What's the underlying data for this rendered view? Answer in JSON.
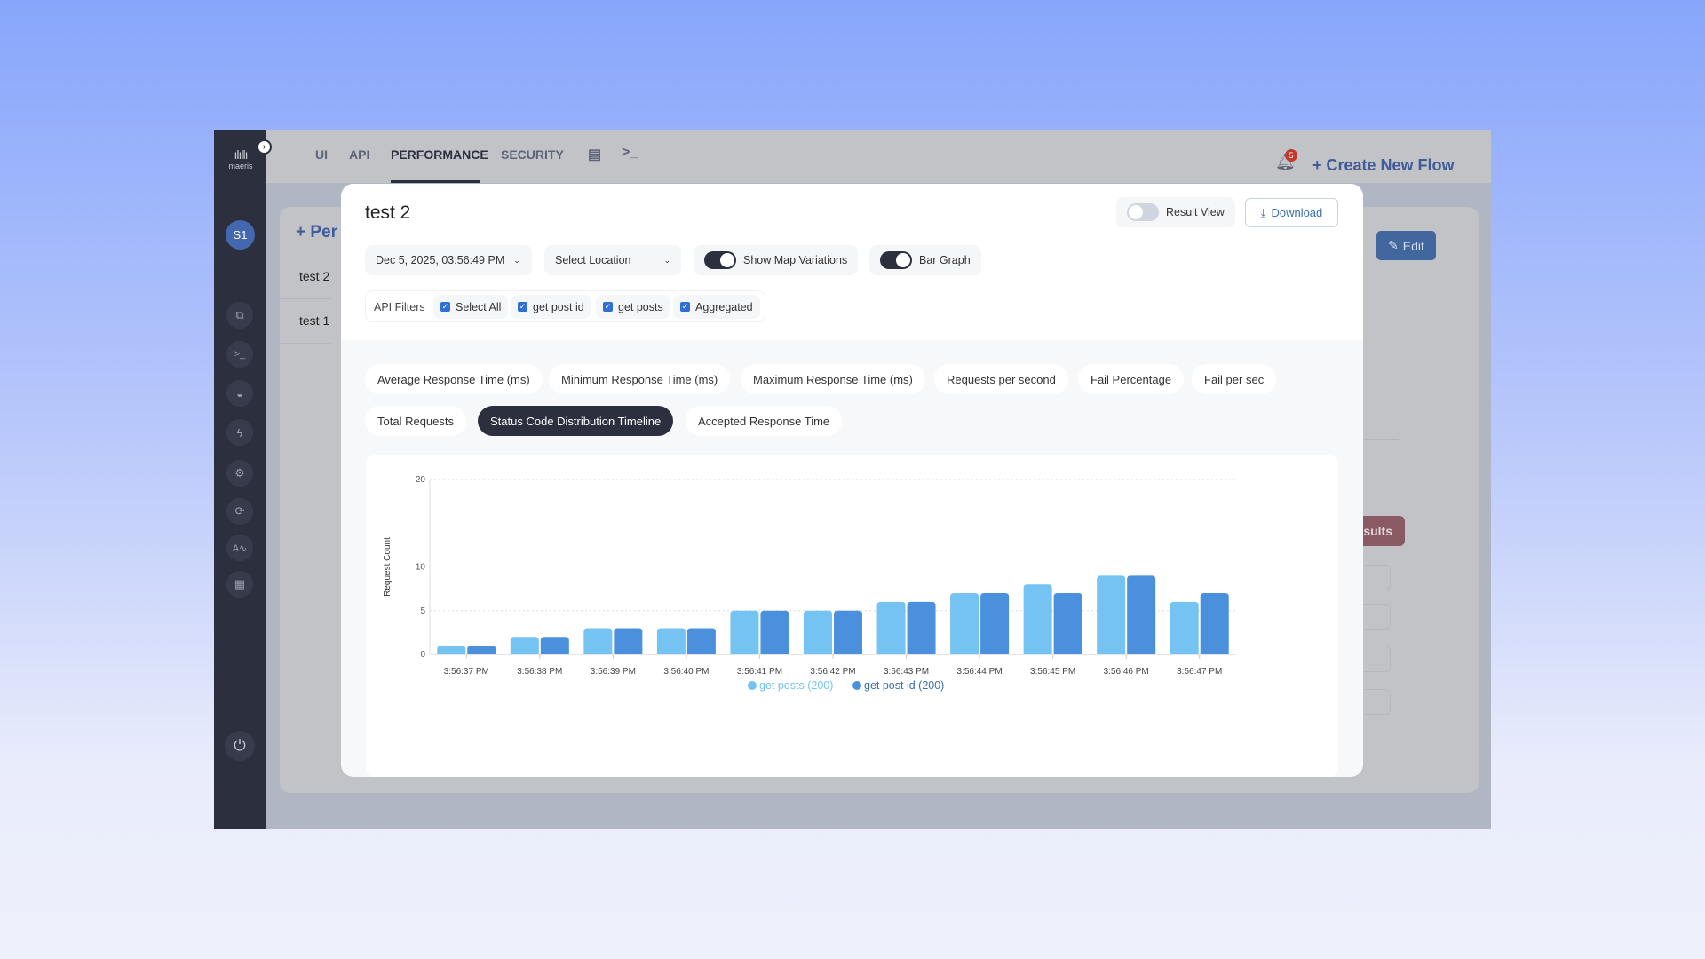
{
  "brand": {
    "name": "maeris"
  },
  "sidebar": {
    "avatar": "S1",
    "icons": [
      "hierarchy-icon",
      "terminal-icon",
      "graduation-cap-icon",
      "lightning-icon",
      "gear-icon",
      "refresh-icon",
      "signature-icon",
      "calendar-icon"
    ],
    "power": "power-icon"
  },
  "topnav": {
    "tabs": [
      "UI",
      "API",
      "PERFORMANCE",
      "SECURITY"
    ],
    "active": "PERFORMANCE",
    "notification_count": "5",
    "create_flow": "+ Create New Flow"
  },
  "background_page": {
    "add_label": "+ Per",
    "tests": [
      "test 2",
      "test 1"
    ],
    "edit": "Edit",
    "results_button": "k Results"
  },
  "modal": {
    "title": "test 2",
    "result_view": "Result View",
    "download": "Download",
    "date": "Dec 5, 2025, 03:56:49 PM",
    "location": "Select Location",
    "show_map_variations": "Show Map Variations",
    "bar_graph": "Bar Graph",
    "api_filters_label": "API Filters",
    "filters": [
      "Select All",
      "get post id",
      "get posts",
      "Aggregated"
    ],
    "metrics": [
      "Average Response Time (ms)",
      "Minimum Response Time (ms)",
      "Maximum Response Time (ms)",
      "Requests per second",
      "Fail Percentage",
      "Fail per sec",
      "Total Requests",
      "Status Code Distribution Timeline",
      "Accepted Response Time"
    ],
    "active_metric": "Status Code Distribution Timeline"
  },
  "chart_data": {
    "type": "bar",
    "ylabel": "Request Count",
    "xlabel": "",
    "ylim": [
      0,
      20
    ],
    "yticks": [
      0,
      5,
      10,
      20
    ],
    "grid": true,
    "legend": "bottom",
    "categories": [
      "3:56:37 PM",
      "3:56:38 PM",
      "3:56:39 PM",
      "3:56:40 PM",
      "3:56:41 PM",
      "3:56:42 PM",
      "3:56:43 PM",
      "3:56:44 PM",
      "3:56:45 PM",
      "3:56:46 PM",
      "3:56:47 PM"
    ],
    "series": [
      {
        "name": "get posts (200)",
        "color": "#74c3f2",
        "values": [
          1,
          2,
          3,
          3,
          5,
          5,
          6,
          7,
          8,
          9,
          6
        ]
      },
      {
        "name": "get post id (200)",
        "color": "#4a90dd",
        "values": [
          1,
          2,
          3,
          3,
          5,
          5,
          6,
          7,
          7,
          9,
          7
        ]
      }
    ]
  }
}
